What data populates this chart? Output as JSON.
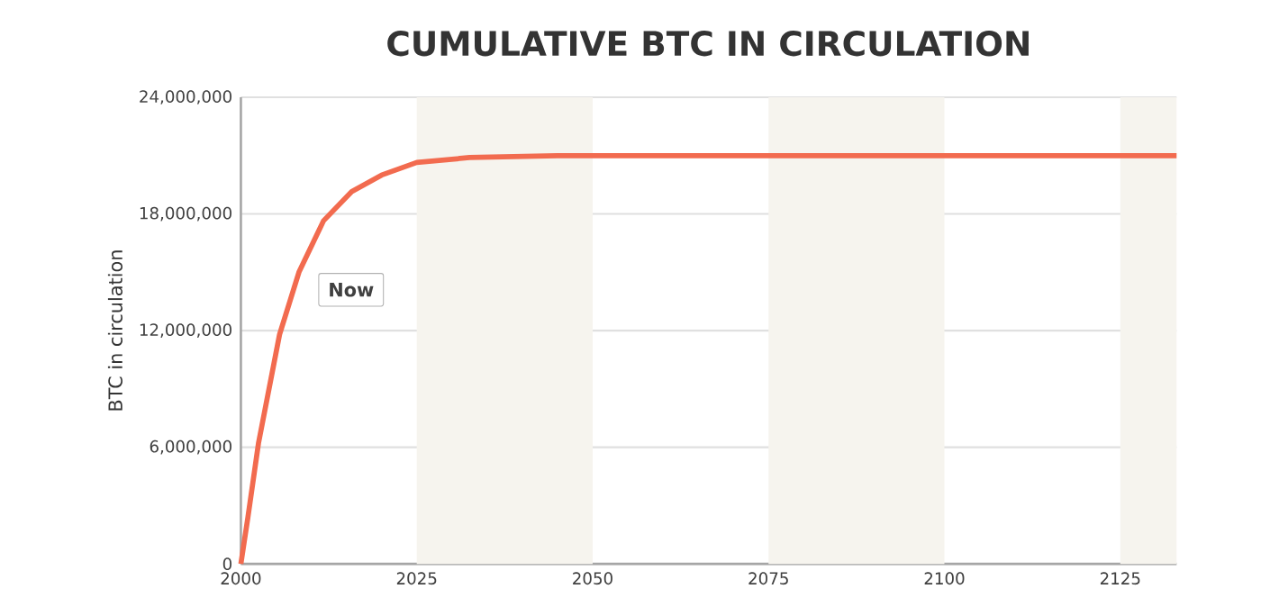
{
  "chart_data": {
    "type": "line",
    "title": "CUMULATIVE BTC IN CIRCULATION",
    "ylabel": "BTC in circulation",
    "x": [
      2000,
      2001,
      2002.5,
      2005.5,
      2008.25,
      2011.75,
      2015.75,
      2020,
      2025,
      2032.5,
      2045,
      2133
    ],
    "series": [
      {
        "color": "#f26b4f",
        "values": [
          0,
          2400000,
          6200000,
          11800000,
          15000000,
          17650000,
          19150000,
          20000000,
          20650000,
          20900000,
          21000000,
          21000000
        ]
      }
    ],
    "xlim": [
      2000,
      2133
    ],
    "xticks": [
      2000,
      2025,
      2050,
      2075,
      2100,
      2125
    ],
    "ylim": [
      0,
      24000000
    ],
    "yticks": [
      {
        "value": 0,
        "label": "0"
      },
      {
        "value": 6000000,
        "label": "6,000,000"
      },
      {
        "value": 12000000,
        "label": "12,000,000"
      },
      {
        "value": 18000000,
        "label": "18,000,000"
      },
      {
        "value": 24000000,
        "label": "24,000,000"
      }
    ],
    "grid": "y",
    "marker": "none",
    "line_style": "solid",
    "bands": [
      {
        "axis": "x",
        "from": 2025,
        "to": 2050,
        "color": "#f6f4ee"
      },
      {
        "axis": "x",
        "from": 2075,
        "to": 2100,
        "color": "#f6f4ee"
      },
      {
        "axis": "x",
        "from": 2125,
        "to": 2133,
        "color": "#f6f4ee"
      }
    ],
    "annotations": [
      {
        "text": "Now",
        "x": 2009,
        "y": 14100000
      }
    ]
  }
}
